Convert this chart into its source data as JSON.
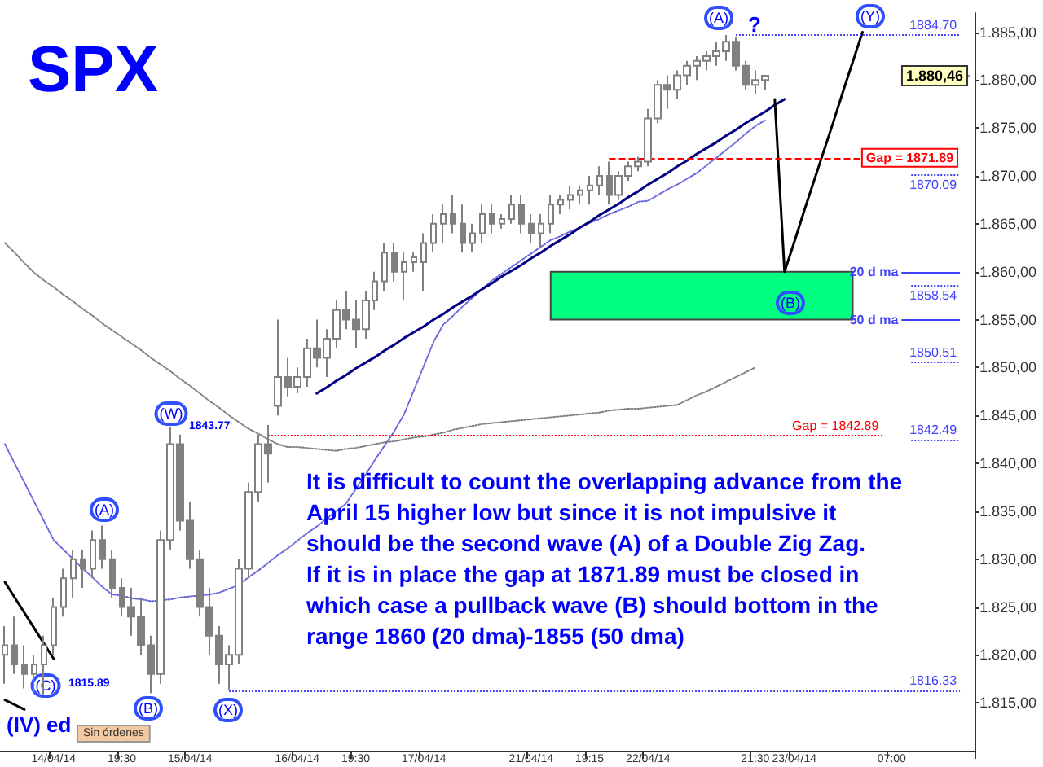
{
  "chart_data": {
    "type": "candlestick",
    "title": "SPX",
    "color": "#808080",
    "marker": "none",
    "categories": [
      null,
      null,
      null,
      null,
      null,
      "14/04/14",
      null,
      null,
      null,
      null,
      null,
      null,
      "19:30",
      null,
      null,
      null,
      null,
      null,
      null,
      "15/04/14",
      null,
      null,
      null,
      null,
      null,
      null,
      null,
      null,
      null,
      null,
      "16/04/14",
      null,
      null,
      null,
      null,
      null,
      "19:30",
      null,
      null,
      null,
      null,
      null,
      null,
      "17/04/14",
      null,
      null,
      null,
      null,
      null,
      null,
      null,
      null,
      null,
      null,
      "21/04/14",
      null,
      null,
      null,
      null,
      null,
      "19:15",
      null,
      null,
      null,
      null,
      null,
      "22/04/14",
      null,
      null,
      null,
      null,
      null,
      null,
      null,
      null,
      null,
      null,
      "21:30",
      null,
      null,
      null,
      "23/04/14",
      null,
      null,
      null,
      null,
      null,
      null,
      null,
      null,
      null,
      "07:00",
      null,
      null,
      null,
      null,
      null,
      null,
      null,
      null
    ],
    "ohlc": [
      [
        1820,
        1823,
        1817,
        1821
      ],
      [
        1821,
        1824,
        1818,
        1819
      ],
      [
        1819,
        1821,
        1816.5,
        1818
      ],
      [
        1818,
        1820,
        1816,
        1819
      ],
      [
        1819,
        1822,
        1815.89,
        1821
      ],
      [
        1821,
        1826,
        1820,
        1825
      ],
      [
        1825,
        1829,
        1824,
        1828
      ],
      [
        1828,
        1831,
        1826,
        1830
      ],
      [
        1830,
        1831,
        1827,
        1829
      ],
      [
        1829,
        1833,
        1828,
        1832
      ],
      [
        1832,
        1833.5,
        1829,
        1830
      ],
      [
        1830,
        1831,
        1826,
        1827
      ],
      [
        1827,
        1828,
        1824,
        1825
      ],
      [
        1825,
        1827,
        1822,
        1824
      ],
      [
        1824,
        1826,
        1820,
        1821
      ],
      [
        1821,
        1822,
        1816,
        1818
      ],
      [
        1818,
        1833,
        1817,
        1832
      ],
      [
        1832,
        1843.77,
        1831,
        1842
      ],
      [
        1842,
        1843,
        1833,
        1834
      ],
      [
        1834,
        1836,
        1829,
        1830
      ],
      [
        1830,
        1831,
        1824,
        1825
      ],
      [
        1825,
        1827,
        1820,
        1822
      ],
      [
        1822,
        1823,
        1817,
        1819
      ],
      [
        1819,
        1821,
        1816.33,
        1820
      ],
      [
        1820,
        1830,
        1819,
        1829
      ],
      [
        1829,
        1838,
        1828,
        1837
      ],
      [
        1837,
        1843,
        1836,
        1842
      ],
      [
        1842,
        1844,
        1838,
        1841
      ],
      [
        1846,
        1855,
        1845,
        1849
      ],
      [
        1849,
        1851,
        1847,
        1848
      ],
      [
        1848,
        1850,
        1847.3,
        1849
      ],
      [
        1849,
        1853,
        1848,
        1852
      ],
      [
        1852,
        1855,
        1850,
        1851
      ],
      [
        1851,
        1854,
        1849,
        1853
      ],
      [
        1853,
        1857,
        1852,
        1856
      ],
      [
        1856,
        1858,
        1854,
        1855
      ],
      [
        1855,
        1857,
        1852,
        1854
      ],
      [
        1854,
        1858,
        1853,
        1857
      ],
      [
        1857,
        1860,
        1856,
        1859
      ],
      [
        1859,
        1863,
        1858,
        1862
      ],
      [
        1862,
        1863,
        1859,
        1860
      ],
      [
        1860,
        1862,
        1857,
        1861
      ],
      [
        1861,
        1862,
        1860,
        1861.5
      ],
      [
        1861,
        1864,
        1858,
        1863
      ],
      [
        1863,
        1866,
        1862,
        1865
      ],
      [
        1865,
        1867,
        1863,
        1866
      ],
      [
        1866,
        1868,
        1864,
        1865
      ],
      [
        1865,
        1867,
        1862,
        1863
      ],
      [
        1863,
        1865,
        1862,
        1864
      ],
      [
        1864,
        1867,
        1863,
        1866
      ],
      [
        1866,
        1867,
        1864,
        1865
      ],
      [
        1865,
        1866,
        1864.5,
        1865.5
      ],
      [
        1865.5,
        1868,
        1865,
        1867
      ],
      [
        1867,
        1868,
        1864,
        1865
      ],
      [
        1865,
        1866,
        1863,
        1864
      ],
      [
        1864,
        1866,
        1862.6,
        1865
      ],
      [
        1865,
        1868,
        1864,
        1867
      ],
      [
        1867,
        1868,
        1866,
        1867.5
      ],
      [
        1867.5,
        1869,
        1866.5,
        1868
      ],
      [
        1868,
        1869,
        1867,
        1868.5
      ],
      [
        1868.5,
        1870,
        1867,
        1869
      ],
      [
        1869,
        1871,
        1868,
        1870
      ],
      [
        1870,
        1871.5,
        1867,
        1868
      ],
      [
        1868,
        1870.5,
        1867.5,
        1870
      ],
      [
        1870,
        1871.5,
        1869.5,
        1871
      ],
      [
        1871,
        1872,
        1870.5,
        1871.5
      ],
      [
        1871.5,
        1877,
        1871,
        1876
      ],
      [
        1876,
        1880,
        1875.5,
        1879.5
      ],
      [
        1879.5,
        1880.5,
        1877,
        1879
      ],
      [
        1879,
        1881,
        1878,
        1880.5
      ],
      [
        1880.5,
        1882,
        1879.5,
        1881.5
      ],
      [
        1881.5,
        1882.5,
        1880,
        1882
      ],
      [
        1882,
        1883,
        1881,
        1882.5
      ],
      [
        1882.5,
        1884,
        1881.5,
        1883
      ],
      [
        1883,
        1884.7,
        1882,
        1884
      ],
      [
        1884,
        1884.5,
        1881,
        1881.5
      ],
      [
        1881.5,
        1882,
        1879,
        1879.5
      ],
      [
        1879.5,
        1881,
        1878.5,
        1880
      ],
      [
        1880,
        1880.5,
        1879,
        1880.46
      ],
      null,
      null,
      null,
      null,
      null,
      null,
      null,
      null,
      null,
      null,
      null,
      null,
      null,
      null,
      null,
      null,
      null,
      null,
      null,
      null,
      null
    ],
    "series": [
      {
        "type": "line",
        "color": "#6666dd",
        "line_style": "dotted",
        "values": [
          1842.0,
          1840.0,
          1838.0,
          1836.0,
          1834.0,
          1832.0,
          1831.0,
          1830.0,
          1829.0,
          1828.1,
          1827.1,
          1826.3,
          1826.2,
          1825.9,
          1825.8,
          1825.6,
          1825.7,
          1825.8,
          1826.0,
          1826.1,
          1826.2,
          1826.3,
          1826.5,
          1826.9,
          1827.3,
          1828.1,
          1828.8,
          1829.6,
          1830.4,
          1831.1,
          1831.9,
          1832.7,
          1833.4,
          1834.2,
          1835.0,
          1835.8,
          1837.3,
          1838.8,
          1840.4,
          1841.9,
          1843.4,
          1845.2,
          1847.7,
          1850.2,
          1852.7,
          1854.5,
          1855.4,
          1856.4,
          1857.3,
          1858.2,
          1859.1,
          1859.8,
          1860.5,
          1861.2,
          1861.9,
          1862.6,
          1863.3,
          1863.7,
          1864.2,
          1864.6,
          1865.1,
          1865.5,
          1866.0,
          1866.4,
          1866.8,
          1867.3,
          1867.4,
          1868.0,
          1868.6,
          1869.1,
          1869.7,
          1870.3,
          1871.1,
          1871.9,
          1872.7,
          1873.5,
          1874.4,
          1875.2,
          1875.8,
          null,
          null,
          null,
          null,
          null,
          null,
          null,
          null,
          null,
          null,
          null,
          null,
          null,
          null,
          null,
          null,
          null,
          null,
          null,
          null,
          null
        ]
      },
      {
        "type": "line",
        "color": "#808080",
        "line_style": "dotted",
        "values": [
          1863.0,
          1862.0,
          1860.9,
          1859.9,
          1859.1,
          1858.4,
          1857.6,
          1856.9,
          1856.1,
          1855.4,
          1854.6,
          1853.9,
          1853.2,
          1852.5,
          1851.8,
          1851.0,
          1850.3,
          1849.6,
          1848.8,
          1848.1,
          1847.3,
          1846.5,
          1845.8,
          1845.0,
          1844.3,
          1843.6,
          1843.1,
          1842.5,
          1842.0,
          1841.7,
          1841.7,
          1841.6,
          1841.5,
          1841.4,
          1841.3,
          1841.5,
          1841.6,
          1841.8,
          1842.0,
          1842.2,
          1842.3,
          1842.5,
          1842.7,
          1842.8,
          1843.0,
          1843.2,
          1843.5,
          1843.7,
          1843.9,
          1844.1,
          1844.2,
          1844.3,
          1844.4,
          1844.5,
          1844.6,
          1844.7,
          1844.8,
          1844.9,
          1845.0,
          1845.1,
          1845.2,
          1845.3,
          1845.5,
          1845.6,
          1845.7,
          1845.7,
          1845.8,
          1845.9,
          1846.0,
          1846.1,
          1846.6,
          1847.1,
          1847.5,
          1848.0,
          1848.5,
          1849.0,
          1849.5,
          1850.0,
          null,
          null,
          null,
          null,
          null,
          null,
          null,
          null,
          null,
          null,
          null,
          null,
          null,
          null,
          null,
          null,
          null,
          null,
          null,
          null,
          null,
          null
        ]
      },
      {
        "type": "line",
        "color": "#000080",
        "line_style": "solid",
        "values": [
          null,
          null,
          null,
          null,
          null,
          null,
          null,
          null,
          null,
          null,
          null,
          null,
          null,
          null,
          null,
          null,
          null,
          null,
          null,
          null,
          null,
          null,
          null,
          null,
          null,
          null,
          null,
          null,
          null,
          null,
          null,
          null,
          1847.3,
          1847.9,
          1848.6,
          1849.2,
          1849.9,
          1850.5,
          1851.1,
          1851.8,
          1852.4,
          1853.1,
          1853.7,
          1854.3,
          1855.0,
          1855.6,
          1856.3,
          1856.9,
          1857.5,
          1858.2,
          1858.8,
          1859.5,
          1860.1,
          1860.7,
          1861.4,
          1862.0,
          1862.7,
          1863.3,
          1863.9,
          1864.6,
          1865.2,
          1865.9,
          1866.5,
          1867.1,
          1867.8,
          1868.4,
          1869.1,
          1869.7,
          1870.3,
          1871.0,
          1871.6,
          1872.3,
          1872.9,
          1873.5,
          1874.2,
          1874.8,
          1875.5,
          1876.1,
          1876.7,
          1877.4,
          1878.0,
          null,
          null,
          null,
          null,
          null,
          null,
          null,
          null,
          null,
          null,
          null,
          null,
          null,
          null,
          null,
          null,
          null,
          null,
          null
        ]
      },
      {
        "type": "line",
        "color": "#000000",
        "line_style": "solid",
        "values": [
          null,
          null,
          null,
          null,
          null,
          null,
          null,
          null,
          null,
          null,
          null,
          null,
          null,
          null,
          null,
          null,
          null,
          null,
          null,
          null,
          null,
          null,
          null,
          null,
          null,
          null,
          null,
          null,
          null,
          null,
          null,
          null,
          null,
          null,
          null,
          null,
          null,
          null,
          null,
          null,
          null,
          null,
          null,
          null,
          null,
          null,
          null,
          null,
          null,
          null,
          null,
          null,
          null,
          null,
          null,
          null,
          null,
          null,
          null,
          null,
          null,
          null,
          null,
          null,
          null,
          null,
          null,
          null,
          null,
          null,
          null,
          null,
          null,
          null,
          null,
          null,
          null,
          null,
          null,
          1878,
          1860,
          1863.1,
          1866.3,
          1869.4,
          1872.5,
          1875.6,
          1878.8,
          1881.9,
          1885,
          null,
          null,
          null,
          null,
          null,
          null,
          null,
          null,
          null,
          null,
          null
        ]
      },
      {
        "type": "line",
        "color": "#000000",
        "line_style": "solid",
        "values": [
          1827.6,
          1826.0,
          1824.4,
          1822.8,
          1821.2,
          1819.6,
          null,
          null,
          null,
          null,
          null,
          null,
          null,
          null,
          null,
          null,
          null,
          null,
          null,
          null,
          null,
          null,
          null,
          null,
          null,
          null,
          null,
          null,
          null,
          null,
          null,
          null,
          null,
          null,
          null,
          null,
          null,
          null,
          null,
          null,
          null,
          null,
          null,
          null,
          null,
          null,
          null,
          null,
          null,
          null,
          null,
          null,
          null,
          null,
          null,
          null,
          null,
          null,
          null,
          null,
          null,
          null,
          null,
          null,
          null,
          null,
          null,
          null,
          null,
          null,
          null,
          null,
          null,
          null,
          null,
          null,
          null,
          null,
          null,
          null,
          null,
          null,
          null,
          null,
          null,
          null,
          null,
          null,
          null,
          null,
          null,
          null,
          null,
          null,
          null,
          null,
          null,
          null,
          null,
          null
        ]
      },
      {
        "type": "line",
        "color": "#000000",
        "line_style": "solid",
        "values": [
          1815.3,
          1814.8,
          1814.3,
          null,
          null,
          null,
          null,
          null,
          null,
          null,
          null,
          null,
          null,
          null,
          null,
          null,
          null,
          null,
          null,
          null,
          null,
          null,
          null,
          null,
          null,
          null,
          null,
          null,
          null,
          null,
          null,
          null,
          null,
          null,
          null,
          null,
          null,
          null,
          null,
          null,
          null,
          null,
          null,
          null,
          null,
          null,
          null,
          null,
          null,
          null,
          null,
          null,
          null,
          null,
          null,
          null,
          null,
          null,
          null,
          null,
          null,
          null,
          null,
          null,
          null,
          null,
          null,
          null,
          null,
          null,
          null,
          null,
          null,
          null,
          null,
          null,
          null,
          null,
          null,
          null,
          null,
          null,
          null,
          null,
          null,
          null,
          null,
          null,
          null,
          null,
          null,
          null,
          null,
          null,
          null,
          null,
          null,
          null,
          null,
          null
        ]
      }
    ],
    "ylim": [
      1810,
      1887
    ],
    "yticks": [
      {
        "value": 1815,
        "label": "1.815,00"
      },
      {
        "value": 1820,
        "label": "1.820,00"
      },
      {
        "value": 1825,
        "label": "1.825,00"
      },
      {
        "value": 1830,
        "label": "1.830,00"
      },
      {
        "value": 1835,
        "label": "1.835,00"
      },
      {
        "value": 1840,
        "label": "1.840,00"
      },
      {
        "value": 1845,
        "label": "1.845,00"
      },
      {
        "value": 1850,
        "label": "1.850,00"
      },
      {
        "value": 1855,
        "label": "1.855,00"
      },
      {
        "value": 1860,
        "label": "1.860,00"
      },
      {
        "value": 1865,
        "label": "1.865,00"
      },
      {
        "value": 1870,
        "label": "1.870,00"
      },
      {
        "value": 1875,
        "label": "1.875,00"
      },
      {
        "value": 1880,
        "label": "1.880,00"
      },
      {
        "value": 1885,
        "label": "1.885,00"
      }
    ],
    "ref_lines": [
      {
        "axis": "y",
        "value": 1884.7,
        "label": "1884.70",
        "color": "#4040ff",
        "line_style": "dotted"
      },
      {
        "axis": "y",
        "value": 1871.89,
        "label": "Gap = 1871.89",
        "color": "#ff0000",
        "line_style": "dashed"
      },
      {
        "axis": "y",
        "value": 1870.09,
        "label": "1870.09",
        "color": "#4040ff",
        "line_style": "dotted"
      },
      {
        "axis": "y",
        "value": 1860,
        "label": "20 d ma",
        "color": "#4040ff",
        "line_style": "solid"
      },
      {
        "axis": "y",
        "value": 1858.54,
        "label": "1858.54",
        "color": "#4040ff",
        "line_style": "dotted"
      },
      {
        "axis": "y",
        "value": 1855,
        "label": "50 d ma",
        "color": "#4040ff",
        "line_style": "solid"
      },
      {
        "axis": "y",
        "value": 1850.51,
        "label": "1850.51",
        "color": "#4040ff",
        "line_style": "dotted"
      },
      {
        "axis": "y",
        "value": 1842.89,
        "label": "Gap = 1842.89",
        "color": "#ff0000",
        "line_style": "dotted"
      },
      {
        "axis": "y",
        "value": 1842.49,
        "label": "1842.49",
        "color": "#4040ff",
        "line_style": "dotted"
      },
      {
        "axis": "y",
        "value": 1816.33,
        "label": "1816.33",
        "color": "#4040ff",
        "line_style": "dotted"
      },
      {
        "axis": "y",
        "value": 1880.46,
        "label": "1.880,46",
        "color": "#333333",
        "line_style": "solid"
      }
    ],
    "bands": [
      {
        "axis": "y",
        "from": 1855,
        "to": 1860,
        "color": "#00ff80"
      }
    ],
    "annotations": [
      "(C)",
      "1815.89",
      "(IV) ed",
      "(A)",
      "(B)",
      "(W)",
      "1843.77",
      "(X)",
      "(A)",
      "?",
      "(B)",
      "(Y)",
      "It is difficult to count the overlapping advance from the\nApril 15 higher low but since it is not impulsive it\nshould be the second wave (A) of a Double Zig Zag.\nIf it is in place the gap at 1871.89 must be closed in\nwhich case a pullback wave (B) should bottom in the\nrange 1860 (20 dma)-1855 (50 dma)",
      "Sin órdenes"
    ]
  }
}
